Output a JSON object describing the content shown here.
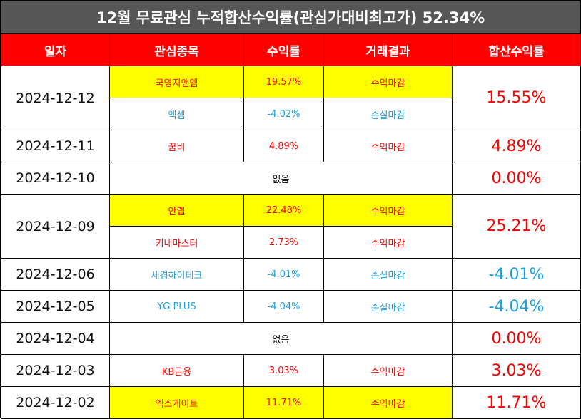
{
  "title": "12월 무료관심 누적합산수익률(관심가대비최고가) 52.34%",
  "headers": [
    "일자",
    "관심종목",
    "수익률",
    "거래결과",
    "합산수익률"
  ],
  "rows": [
    {
      "date": "2024-12-12",
      "total": "15.55%",
      "total_color": "red",
      "items": [
        {
          "stock": "국영지앤엠",
          "rate": "19.57%",
          "result": "수익마감",
          "highlight": true,
          "color": "red"
        },
        {
          "stock": "엑셈",
          "rate": "-4.02%",
          "result": "손실마감",
          "highlight": false,
          "color": "blue"
        }
      ]
    },
    {
      "date": "2024-12-11",
      "total": "4.89%",
      "total_color": "red",
      "items": [
        {
          "stock": "꿈비",
          "rate": "4.89%",
          "result": "수익마감",
          "highlight": false,
          "color": "red"
        }
      ]
    },
    {
      "date": "2024-12-10",
      "total": "0.00%",
      "total_color": "red",
      "none": "없음"
    },
    {
      "date": "2024-12-09",
      "total": "25.21%",
      "total_color": "red",
      "items": [
        {
          "stock": "안랩",
          "rate": "22.48%",
          "result": "수익마감",
          "highlight": true,
          "color": "red"
        },
        {
          "stock": "키네마스터",
          "rate": "2.73%",
          "result": "수익마감",
          "highlight": false,
          "color": "red"
        }
      ]
    },
    {
      "date": "2024-12-06",
      "total": "-4.01%",
      "total_color": "blue",
      "items": [
        {
          "stock": "세경하이테크",
          "rate": "-4.01%",
          "result": "손실마감",
          "highlight": false,
          "color": "blue"
        }
      ]
    },
    {
      "date": "2024-12-05",
      "total": "-4.04%",
      "total_color": "blue",
      "items": [
        {
          "stock": "YG PLUS",
          "rate": "-4.04%",
          "result": "손실마감",
          "highlight": false,
          "color": "blue"
        }
      ]
    },
    {
      "date": "2024-12-04",
      "total": "0.00%",
      "total_color": "red",
      "none": "없음"
    },
    {
      "date": "2024-12-03",
      "total": "3.03%",
      "total_color": "red",
      "items": [
        {
          "stock": "KB금융",
          "rate": "3.03%",
          "result": "수익마감",
          "highlight": false,
          "color": "red"
        }
      ]
    },
    {
      "date": "2024-12-02",
      "total": "11.71%",
      "total_color": "red",
      "items": [
        {
          "stock": "엑스게이트",
          "rate": "11.71%",
          "result": "수익마감",
          "highlight": true,
          "color": "red"
        }
      ]
    }
  ],
  "colors": {
    "red": "#ff0000",
    "blue": "#1aa0e0",
    "header_bg": "#ff0000",
    "title_bg": "#565656",
    "highlight": "#ffff00"
  }
}
